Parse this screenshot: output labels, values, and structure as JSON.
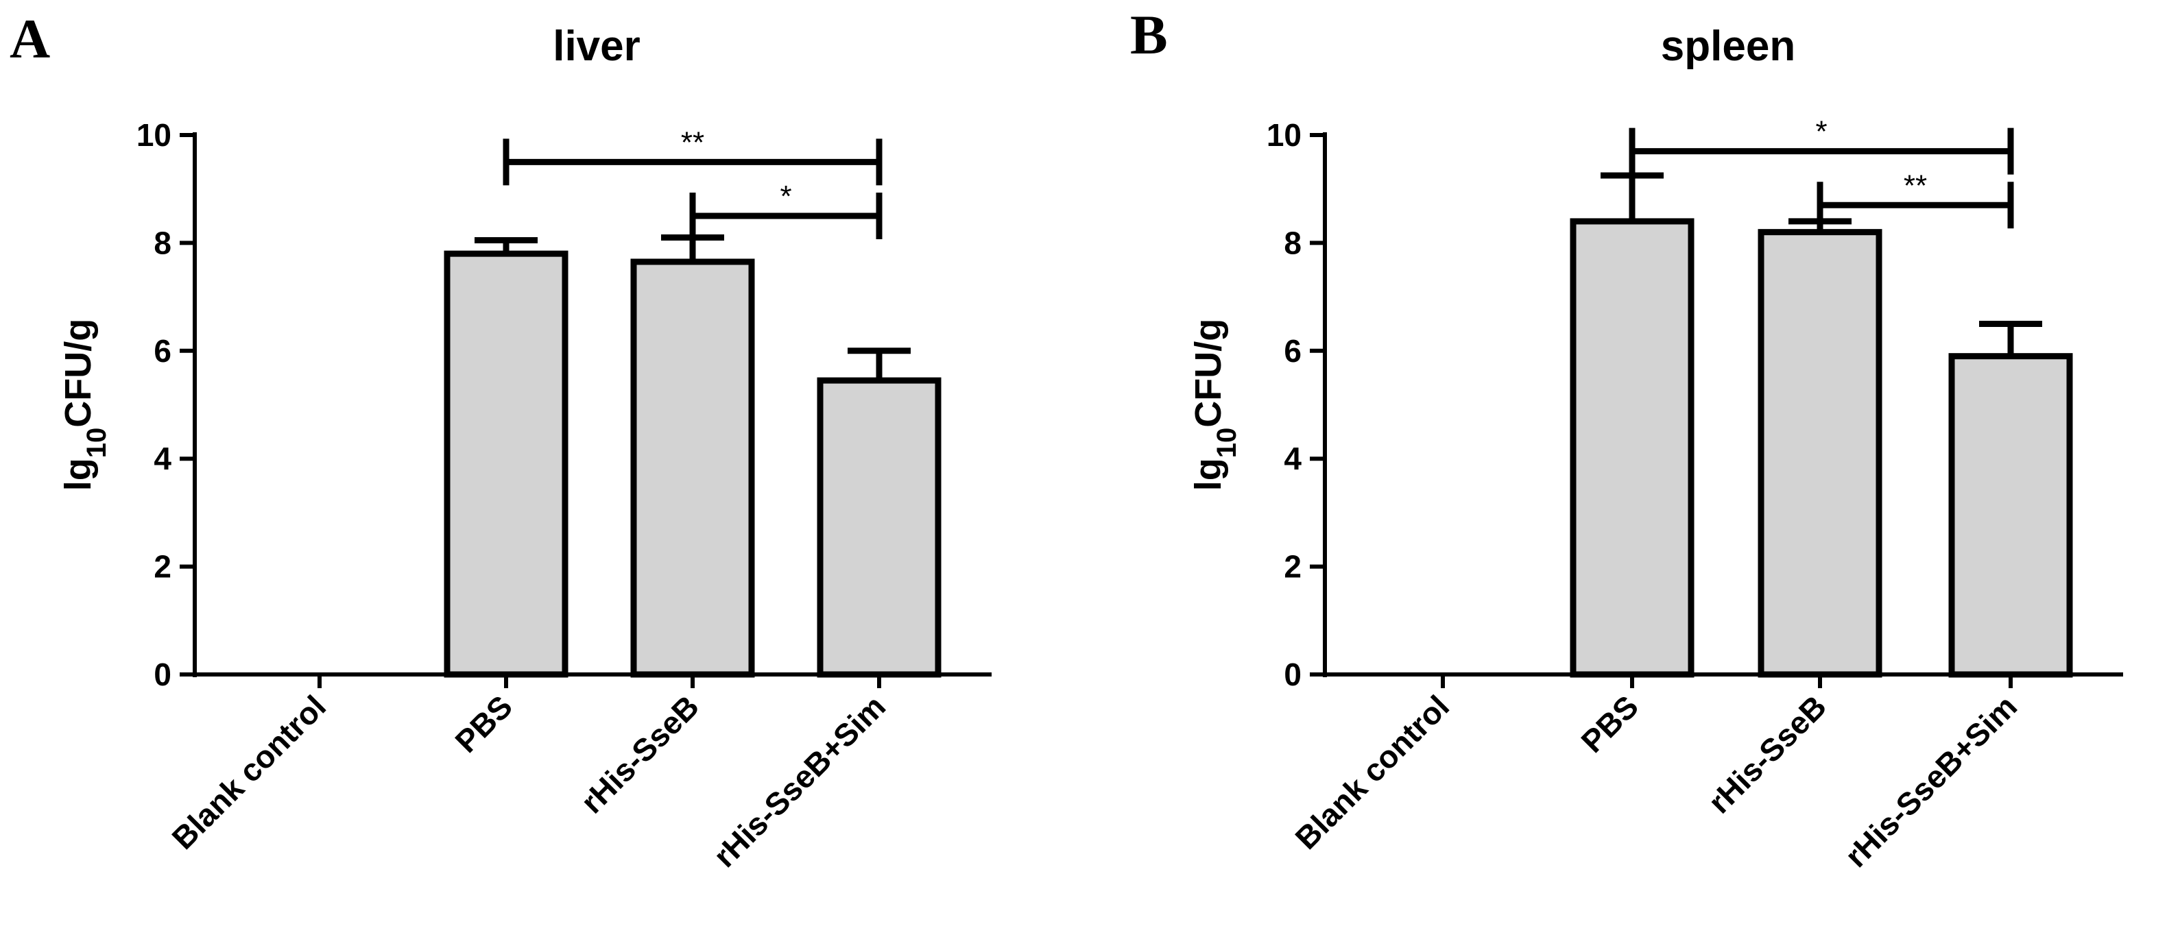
{
  "figure": {
    "panels": [
      {
        "letter": "A",
        "title": "liver"
      },
      {
        "letter": "B",
        "title": "spleen"
      }
    ]
  },
  "chart_data": [
    {
      "type": "bar",
      "panel": "A",
      "title": "liver",
      "ylabel_main": "lg",
      "ylabel_sub": "10",
      "ylabel_tail": "CFU/g",
      "ylim": [
        0,
        10
      ],
      "yticks": [
        0,
        2,
        4,
        6,
        8,
        10
      ],
      "categories": [
        "Blank control",
        "PBS",
        "rHis-SseB",
        "rHis-SseB+Sim"
      ],
      "values": [
        0,
        7.8,
        7.65,
        5.45
      ],
      "errors": [
        0,
        0.25,
        0.45,
        0.55
      ],
      "bar_color": "#d3d3d3",
      "significance": [
        {
          "from": 1,
          "to": 3,
          "label": "**",
          "y": 9.5
        },
        {
          "from": 2,
          "to": 3,
          "label": "*",
          "y": 8.5
        }
      ]
    },
    {
      "type": "bar",
      "panel": "B",
      "title": "spleen",
      "ylabel_main": "lg",
      "ylabel_sub": "10",
      "ylabel_tail": "CFU/g",
      "ylim": [
        0,
        10
      ],
      "yticks": [
        0,
        2,
        4,
        6,
        8,
        10
      ],
      "categories": [
        "Blank control",
        "PBS",
        "rHis-SseB",
        "rHis-SseB+Sim"
      ],
      "values": [
        0,
        8.4,
        8.2,
        5.9
      ],
      "errors": [
        0,
        0.85,
        0.2,
        0.6
      ],
      "bar_color": "#d3d3d3",
      "significance": [
        {
          "from": 1,
          "to": 3,
          "label": "*",
          "y": 9.7
        },
        {
          "from": 2,
          "to": 3,
          "label": "**",
          "y": 8.7
        }
      ]
    }
  ]
}
